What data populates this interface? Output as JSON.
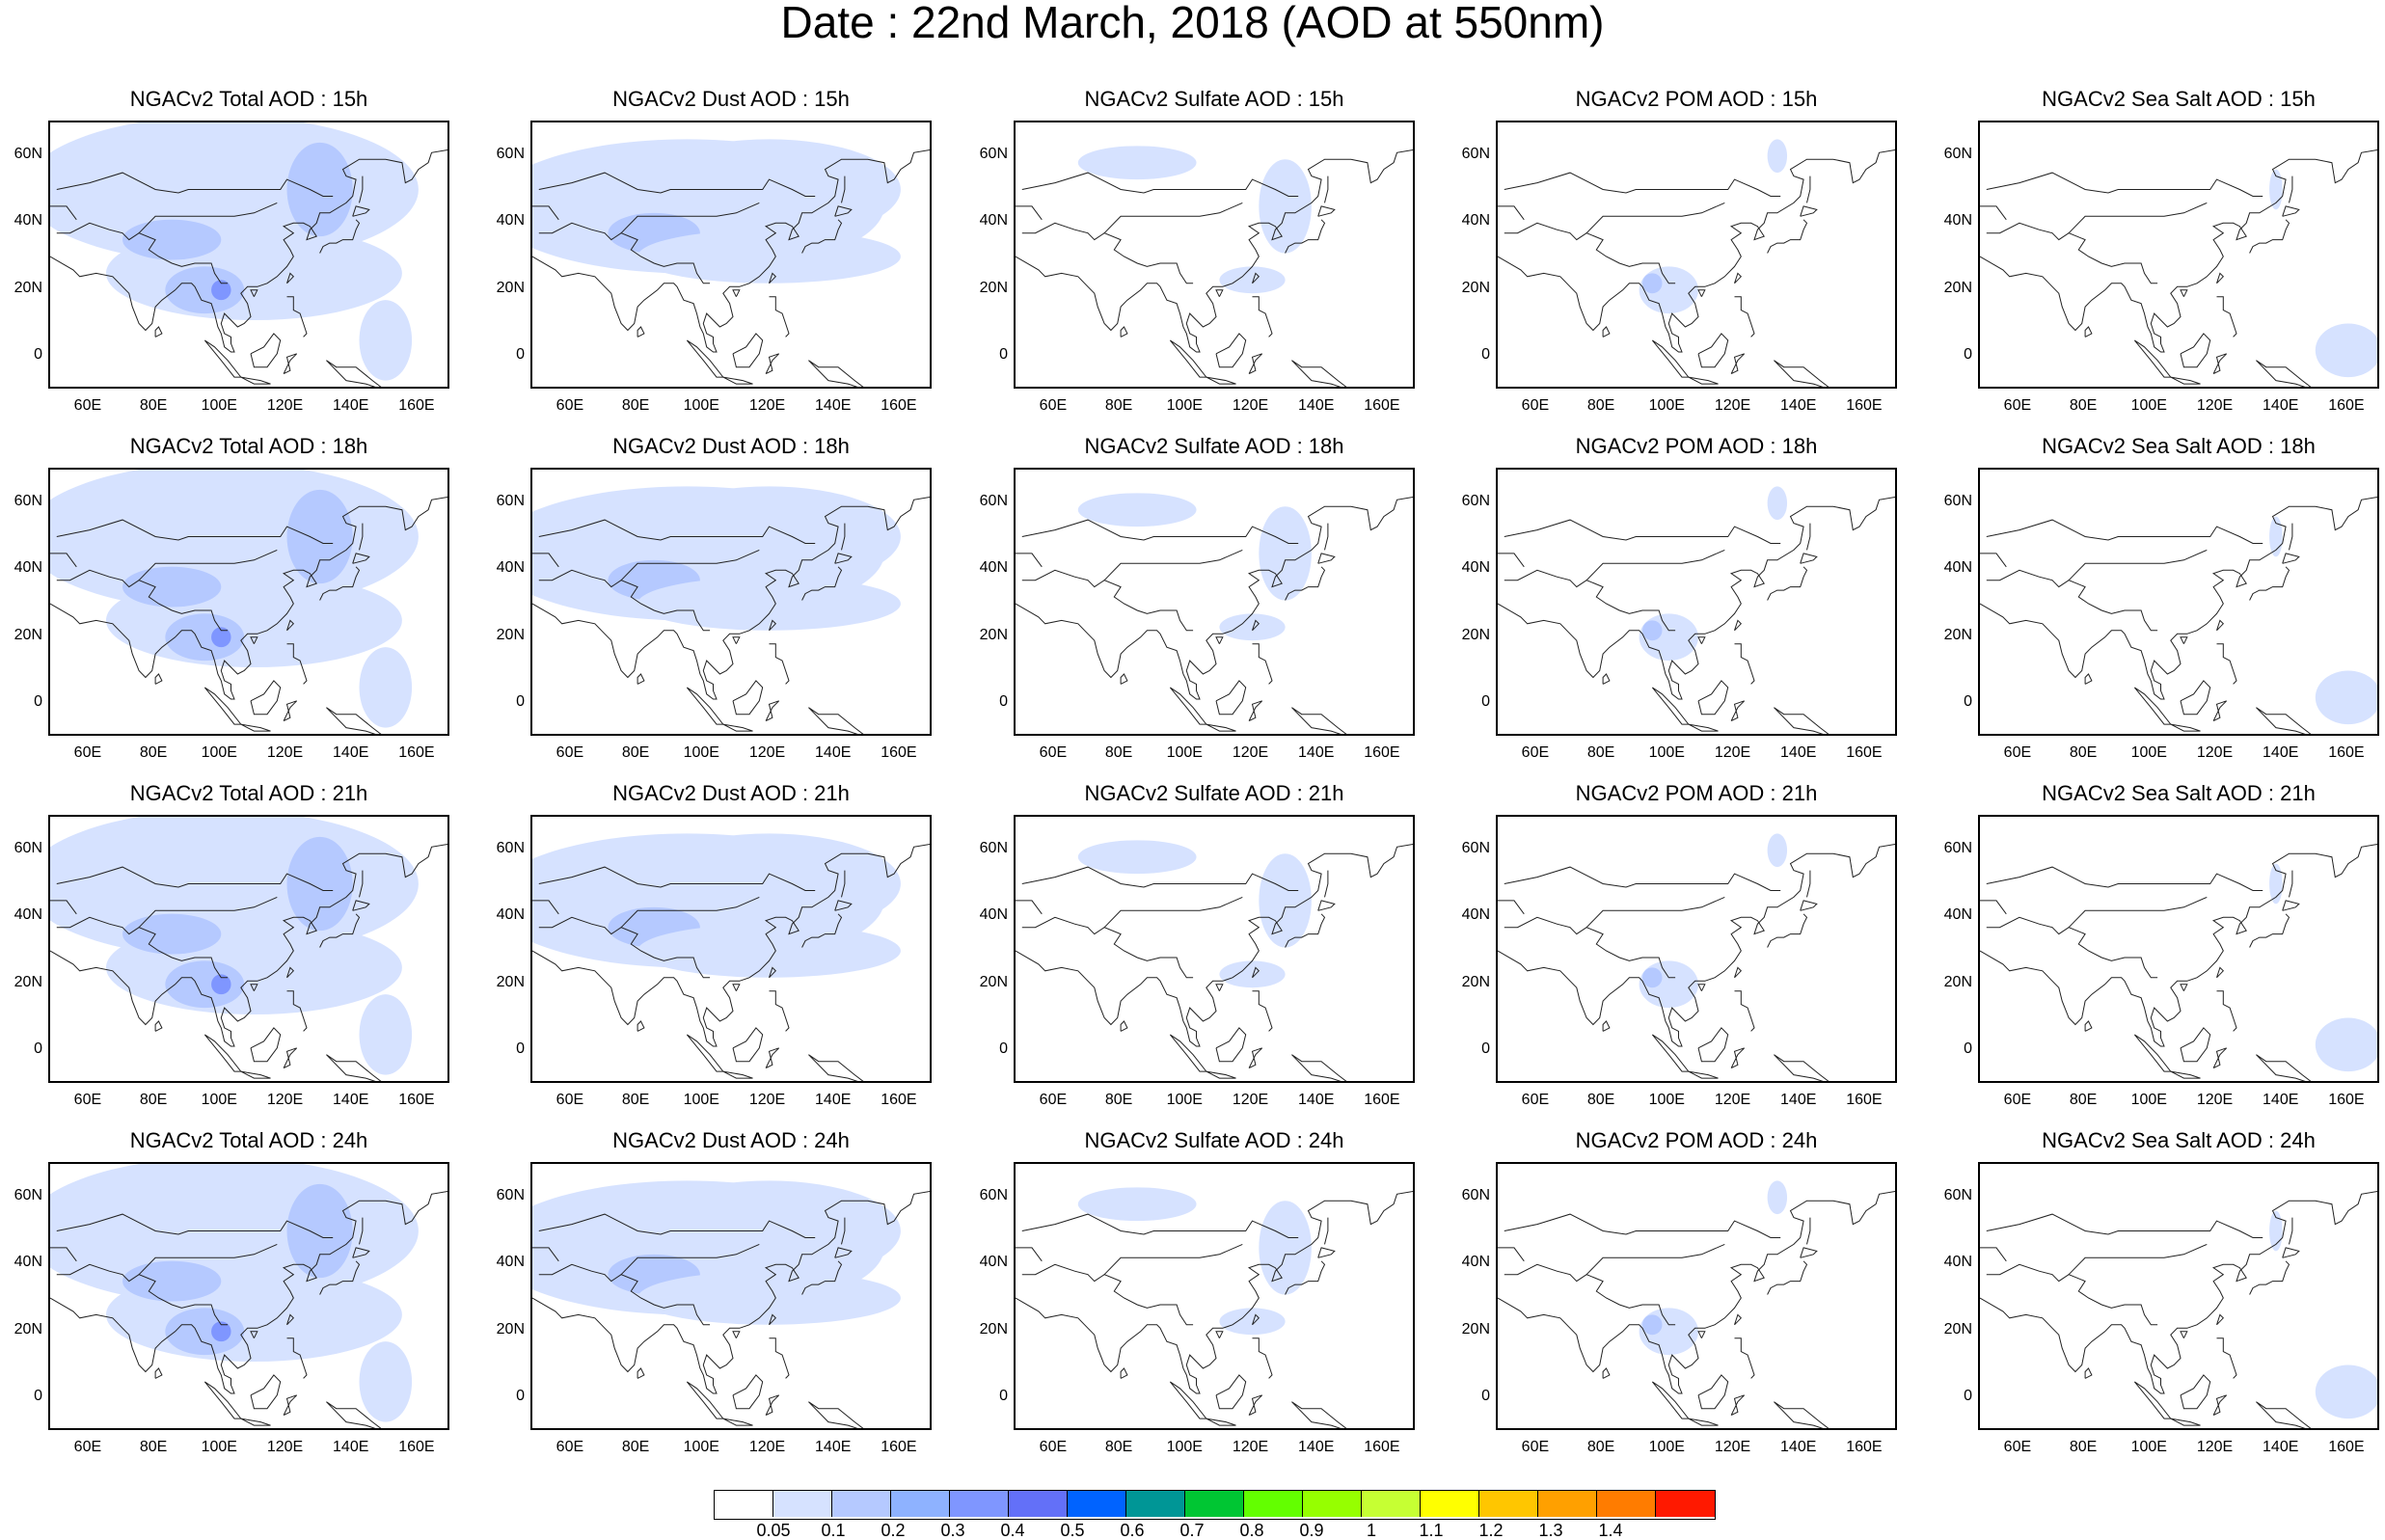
{
  "title": "Date : 22nd March, 2018 (AOD at 550nm)",
  "columns": [
    "total",
    "dust",
    "sulfate",
    "pom",
    "seasalt"
  ],
  "panels": [
    [
      "NGACv2 Total AOD : 15h",
      "NGACv2 Dust AOD : 15h",
      "NGACv2 Sulfate AOD : 15h",
      "NGACv2 POM AOD : 15h",
      "NGACv2 Sea Salt AOD : 15h"
    ],
    [
      "NGACv2 Total AOD : 18h",
      "NGACv2 Dust AOD : 18h",
      "NGACv2 Sulfate AOD : 18h",
      "NGACv2 POM AOD : 18h",
      "NGACv2 Sea Salt AOD : 18h"
    ],
    [
      "NGACv2 Total AOD : 21h",
      "NGACv2 Dust AOD : 21h",
      "NGACv2 Sulfate AOD : 21h",
      "NGACv2 POM AOD : 21h",
      "NGACv2 Sea Salt AOD : 21h"
    ],
    [
      "NGACv2 Total AOD : 24h",
      "NGACv2 Dust AOD : 24h",
      "NGACv2 Sulfate AOD : 24h",
      "NGACv2 POM AOD : 24h",
      "NGACv2 Sea Salt  AOD : 24h"
    ]
  ],
  "map": {
    "lon_range": [
      48,
      170
    ],
    "lat_range": [
      -10,
      70
    ],
    "x_ticks": [
      "60E",
      "80E",
      "100E",
      "120E",
      "140E",
      "160E"
    ],
    "x_tick_values": [
      60,
      80,
      100,
      120,
      140,
      160
    ],
    "y_ticks": [
      "60N",
      "40N",
      "20N",
      "0"
    ],
    "y_tick_values": [
      60,
      40,
      20,
      0
    ]
  },
  "colorbar": {
    "colors": [
      "#ffffff",
      "#d6e2ff",
      "#b5c9ff",
      "#8eb2ff",
      "#7f96ff",
      "#6370f8",
      "#0063ff",
      "#009696",
      "#00c633",
      "#63ff00",
      "#96ff00",
      "#c6ff33",
      "#ffff00",
      "#ffc600",
      "#ffa000",
      "#ff7c00",
      "#ff1900"
    ],
    "labels": [
      "0.05",
      "0.1",
      "0.2",
      "0.3",
      "0.4",
      "0.5",
      "0.6",
      "0.7",
      "0.8",
      "0.9",
      "1",
      "1.1",
      "1.2",
      "1.3",
      "1.4"
    ]
  }
}
